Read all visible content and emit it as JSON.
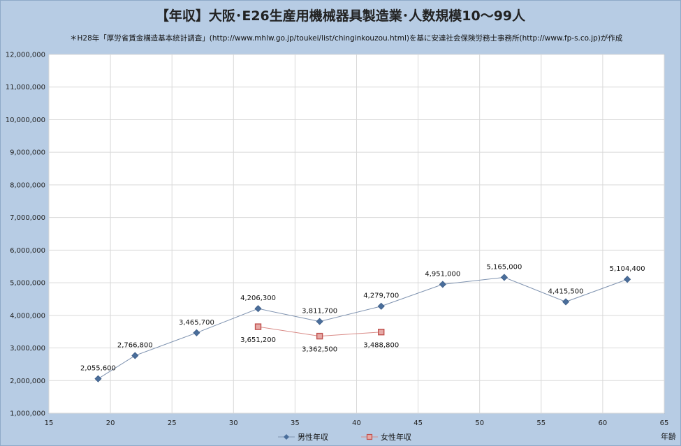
{
  "chart_data": {
    "type": "line",
    "title": "【年収】大阪･E26生産用機械器具製造業･人数規模10～99人",
    "subtitle": "＊H28年「厚労省賃金構造基本統計調査」(http://www.mhlw.go.jp/toukei/list/chinginkouzou.html)を基に安達社会保険労務士事務所(http://www.fp-s.co.jp)が作成",
    "xlabel": "年齢",
    "ylabel": "",
    "xlim": [
      15,
      65
    ],
    "ylim": [
      1000000,
      12000000
    ],
    "xticks": [
      "15",
      "20",
      "25",
      "30",
      "35",
      "40",
      "45",
      "50",
      "55",
      "60",
      "65"
    ],
    "yticks": [
      "1,000,000",
      "2,000,000",
      "3,000,000",
      "4,000,000",
      "5,000,000",
      "6,000,000",
      "7,000,000",
      "8,000,000",
      "9,000,000",
      "10,000,000",
      "11,000,000",
      "12,000,000"
    ],
    "grid": true,
    "legend_position": "bottom",
    "series": [
      {
        "name": "男性年収",
        "color": "#4a6e9b",
        "marker": "diamond",
        "x": [
          19,
          22,
          27,
          32,
          37,
          42,
          47,
          52,
          57,
          62
        ],
        "y": [
          2055600,
          2766800,
          3465700,
          4206300,
          3811700,
          4279700,
          4951000,
          5165000,
          4415500,
          5104400
        ],
        "labels": [
          "2,055,600",
          "2,766,800",
          "3,465,700",
          "4,206,300",
          "3,811,700",
          "4,279,700",
          "4,951,000",
          "5,165,000",
          "4,415,500",
          "5,104,400"
        ]
      },
      {
        "name": "女性年収",
        "color": "#c0504d",
        "marker": "square",
        "x": [
          32,
          37,
          42
        ],
        "y": [
          3651200,
          3362500,
          3488800
        ],
        "labels": [
          "3,651,200",
          "3,362,500",
          "3,488,800"
        ]
      }
    ]
  }
}
